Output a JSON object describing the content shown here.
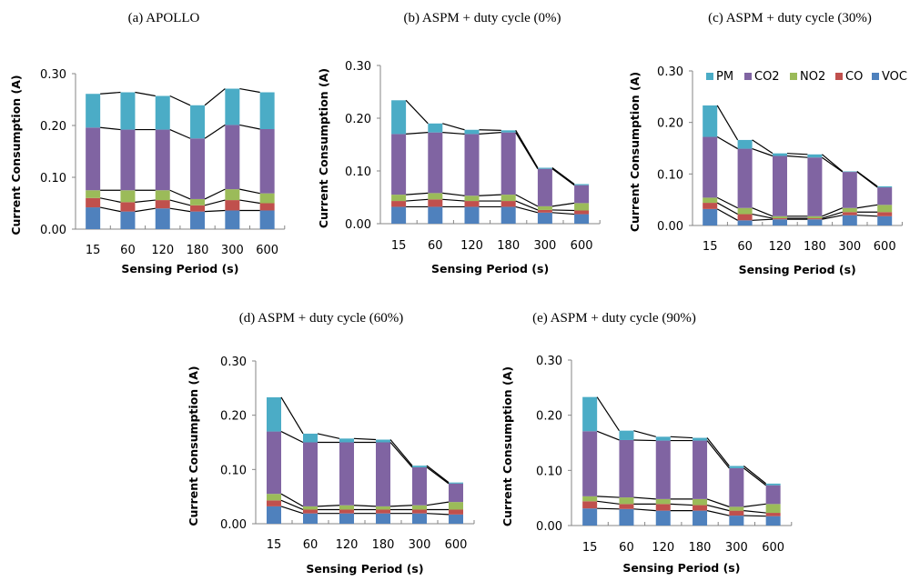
{
  "figure": {
    "series_colors": {
      "VOC": "#4F81BD",
      "CO": "#C0504D",
      "NO2": "#9BBB59",
      "CO2": "#8064A2",
      "PM": "#4BACC6"
    },
    "legend_entries": [
      "PM",
      "CO2",
      "NO2",
      "CO",
      "VOC"
    ]
  },
  "chart_data": [
    {
      "type": "bar",
      "stacked": true,
      "title": "(a) APOLLO",
      "xlabel": "Sensing Period (s)",
      "ylabel": "Current Consumption (A)",
      "ylim": [
        0,
        0.3
      ],
      "yticks": [
        "0.00",
        "0.10",
        "0.20",
        "0.30"
      ],
      "categories": [
        "15",
        "60",
        "120",
        "180",
        "300",
        "600"
      ],
      "series": [
        {
          "name": "VOC",
          "values": [
            0.042,
            0.034,
            0.04,
            0.034,
            0.036,
            0.036
          ]
        },
        {
          "name": "CO",
          "values": [
            0.018,
            0.018,
            0.016,
            0.012,
            0.02,
            0.014
          ]
        },
        {
          "name": "NO2",
          "values": [
            0.015,
            0.023,
            0.019,
            0.012,
            0.021,
            0.019
          ]
        },
        {
          "name": "CO2",
          "values": [
            0.121,
            0.117,
            0.117,
            0.117,
            0.124,
            0.124
          ]
        },
        {
          "name": "PM",
          "values": [
            0.065,
            0.072,
            0.065,
            0.064,
            0.07,
            0.071
          ]
        }
      ],
      "legend": "none",
      "grid": false
    },
    {
      "type": "bar",
      "stacked": true,
      "title": "(b) ASPM + duty cycle (0%)",
      "xlabel": "Sensing Period (s)",
      "ylabel": "Current Consumption (A)",
      "ylim": [
        0,
        0.3
      ],
      "yticks": [
        "0.00",
        "0.10",
        "0.20",
        "0.30"
      ],
      "categories": [
        "15",
        "60",
        "120",
        "180",
        "300",
        "600"
      ],
      "series": [
        {
          "name": "VOC",
          "values": [
            0.032,
            0.032,
            0.032,
            0.032,
            0.021,
            0.018
          ]
        },
        {
          "name": "CO",
          "values": [
            0.011,
            0.014,
            0.011,
            0.011,
            0.005,
            0.007
          ]
        },
        {
          "name": "NO2",
          "values": [
            0.012,
            0.012,
            0.01,
            0.012,
            0.007,
            0.014
          ]
        },
        {
          "name": "CO2",
          "values": [
            0.115,
            0.115,
            0.117,
            0.118,
            0.071,
            0.034
          ]
        },
        {
          "name": "PM",
          "values": [
            0.064,
            0.017,
            0.008,
            0.004,
            0.002,
            0.002
          ]
        }
      ],
      "legend": "none",
      "grid": false
    },
    {
      "type": "bar",
      "stacked": true,
      "title": "(c) ASPM + duty cycle (30%)",
      "xlabel": "Sensing Period (s)",
      "ylabel": "Current Consumption (A)",
      "ylim": [
        0,
        0.3
      ],
      "yticks": [
        "0.00",
        "0.10",
        "0.20",
        "0.30"
      ],
      "categories": [
        "15",
        "60",
        "120",
        "180",
        "300",
        "600"
      ],
      "series": [
        {
          "name": "VOC",
          "values": [
            0.032,
            0.01,
            0.012,
            0.012,
            0.02,
            0.018
          ]
        },
        {
          "name": "CO",
          "values": [
            0.012,
            0.012,
            0.002,
            0.002,
            0.006,
            0.008
          ]
        },
        {
          "name": "NO2",
          "values": [
            0.01,
            0.012,
            0.004,
            0.004,
            0.008,
            0.014
          ]
        },
        {
          "name": "CO2",
          "values": [
            0.118,
            0.115,
            0.117,
            0.114,
            0.07,
            0.034
          ]
        },
        {
          "name": "PM",
          "values": [
            0.061,
            0.017,
            0.005,
            0.006,
            0.001,
            0.002
          ]
        }
      ],
      "legend": "top-right",
      "grid": false
    },
    {
      "type": "bar",
      "stacked": true,
      "title": "(d) ASPM + duty cycle (60%)",
      "xlabel": "Sensing Period (s)",
      "ylabel": "Current Consumption (A)",
      "ylim": [
        0,
        0.3
      ],
      "yticks": [
        "0.00",
        "0.10",
        "0.20",
        "0.30"
      ],
      "categories": [
        "15",
        "60",
        "120",
        "180",
        "300",
        "600"
      ],
      "series": [
        {
          "name": "VOC",
          "values": [
            0.032,
            0.019,
            0.019,
            0.019,
            0.019,
            0.017
          ]
        },
        {
          "name": "CO",
          "values": [
            0.011,
            0.007,
            0.007,
            0.007,
            0.007,
            0.009
          ]
        },
        {
          "name": "NO2",
          "values": [
            0.012,
            0.006,
            0.008,
            0.006,
            0.008,
            0.014
          ]
        },
        {
          "name": "CO2",
          "values": [
            0.115,
            0.118,
            0.116,
            0.118,
            0.07,
            0.034
          ]
        },
        {
          "name": "PM",
          "values": [
            0.063,
            0.016,
            0.007,
            0.005,
            0.003,
            0.002
          ]
        }
      ],
      "legend": "none",
      "grid": false
    },
    {
      "type": "bar",
      "stacked": true,
      "title": "(e) ASPM + duty cycle (90%)",
      "xlabel": "Sensing Period (s)",
      "ylabel": "Current Consumption (A)",
      "ylim": [
        0,
        0.3
      ],
      "yticks": [
        "0.00",
        "0.10",
        "0.20",
        "0.30"
      ],
      "categories": [
        "15",
        "60",
        "120",
        "180",
        "300",
        "600"
      ],
      "series": [
        {
          "name": "VOC",
          "values": [
            0.031,
            0.03,
            0.027,
            0.027,
            0.018,
            0.017
          ]
        },
        {
          "name": "CO",
          "values": [
            0.013,
            0.009,
            0.012,
            0.01,
            0.009,
            0.006
          ]
        },
        {
          "name": "NO2",
          "values": [
            0.009,
            0.012,
            0.009,
            0.011,
            0.007,
            0.016
          ]
        },
        {
          "name": "CO2",
          "values": [
            0.118,
            0.104,
            0.106,
            0.106,
            0.07,
            0.034
          ]
        },
        {
          "name": "PM",
          "values": [
            0.062,
            0.017,
            0.007,
            0.005,
            0.004,
            0.003
          ]
        }
      ],
      "legend": "none",
      "grid": false
    }
  ]
}
